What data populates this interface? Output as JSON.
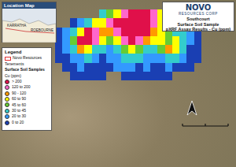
{
  "header": {
    "logo": "NOVO",
    "company": "RESOURCES CORP",
    "lines": [
      "Southcourt",
      "Surface Soil Sample",
      "pXRF Assay Results - Cu (ppm)"
    ]
  },
  "location_map": {
    "title": "Location Map",
    "places": [
      "KARRATHA",
      "ROEBOURNE"
    ]
  },
  "legend": {
    "title": "Legend",
    "items": [
      "Novo Resources Tenements"
    ],
    "samples_title": "Surface Soil Samples",
    "unit": "Cu (ppm)"
  },
  "chart_data": {
    "type": "heatmap",
    "tick_labels": false,
    "bins": [
      {
        "label": "> 200",
        "min": 200,
        "max": null,
        "color": "#e0104a"
      },
      {
        "label": "120 to 200",
        "min": 120,
        "max": 200,
        "color": "#ff66cc"
      },
      {
        "label": "90 - 120",
        "min": 90,
        "max": 120,
        "color": "#ff9900"
      },
      {
        "label": "60 to 90",
        "min": 60,
        "max": 90,
        "color": "#ffff00"
      },
      {
        "label": "45 to 60",
        "min": 45,
        "max": 60,
        "color": "#66cc33"
      },
      {
        "label": "30 to 45",
        "min": 30,
        "max": 45,
        "color": "#33cccc"
      },
      {
        "label": "20 to 30",
        "min": 20,
        "max": 30,
        "color": "#3399ff"
      },
      {
        "label": "0 to 20",
        "min": 0,
        "max": 20,
        "color": "#1a3fb3"
      }
    ],
    "z": [
      [
        null,
        null,
        null,
        null,
        null,
        null,
        35,
        50,
        70,
        150,
        260,
        300,
        220,
        130,
        60,
        40,
        30,
        25,
        20,
        null
      ],
      [
        null,
        null,
        15,
        25,
        40,
        60,
        80,
        130,
        250,
        320,
        400,
        350,
        280,
        150,
        70,
        45,
        35,
        30,
        25,
        20
      ],
      [
        10,
        20,
        35,
        70,
        250,
        180,
        90,
        100,
        160,
        280,
        350,
        300,
        220,
        110,
        80,
        55,
        40,
        30,
        25,
        15
      ],
      [
        15,
        25,
        50,
        260,
        300,
        150,
        60,
        45,
        70,
        120,
        210,
        160,
        100,
        70,
        60,
        50,
        80,
        40,
        20,
        10
      ],
      [
        10,
        20,
        30,
        100,
        80,
        40,
        30,
        25,
        35,
        50,
        60,
        50,
        40,
        35,
        45,
        90,
        60,
        30,
        15,
        10
      ],
      [
        5,
        15,
        20,
        25,
        30,
        20,
        15,
        20,
        25,
        30,
        35,
        30,
        25,
        20,
        25,
        35,
        30,
        20,
        10,
        5
      ],
      [
        null,
        10,
        15,
        20,
        15,
        10,
        15,
        15,
        20,
        25,
        20,
        15,
        20,
        15,
        10,
        20,
        15,
        10,
        5,
        null
      ],
      [
        null,
        null,
        10,
        15,
        10,
        5,
        10,
        null,
        null,
        15,
        10,
        10,
        15,
        10,
        5,
        10,
        null,
        null,
        null,
        null
      ]
    ]
  }
}
